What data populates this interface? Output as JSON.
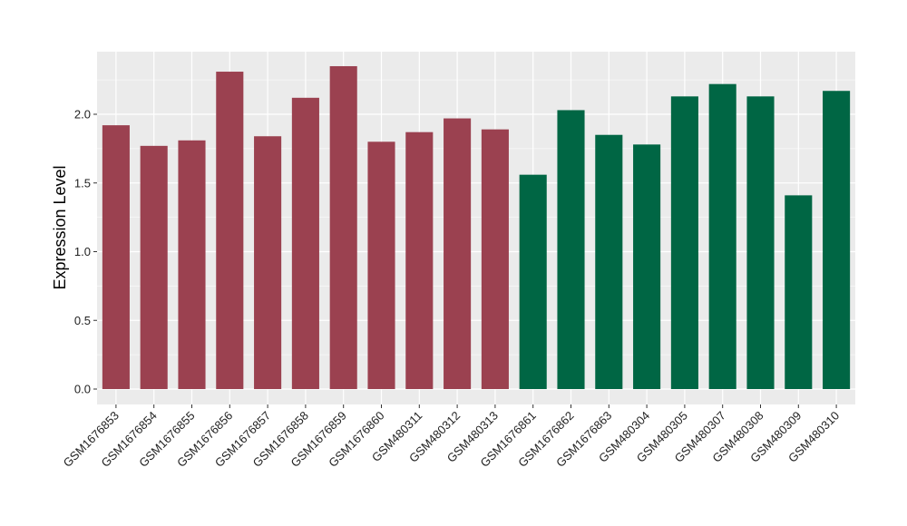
{
  "chart_data": {
    "type": "bar",
    "title": "",
    "xlabel": "",
    "ylabel": "Expression Level",
    "ylim": [
      0,
      2.47
    ],
    "yticks": [
      0.0,
      0.5,
      1.0,
      1.5,
      2.0
    ],
    "ytick_labels": [
      "0.0",
      "0.5",
      "1.0",
      "1.5",
      "2.0"
    ],
    "grid": true,
    "legend": "none",
    "categories": [
      "GSM1676853",
      "GSM1676854",
      "GSM1676855",
      "GSM1676856",
      "GSM1676857",
      "GSM1676858",
      "GSM1676859",
      "GSM1676860",
      "GSM480311",
      "GSM480312",
      "GSM480313",
      "GSM1676861",
      "GSM1676862",
      "GSM1676863",
      "GSM480304",
      "GSM480305",
      "GSM480307",
      "GSM480308",
      "GSM480309",
      "GSM480310"
    ],
    "values": [
      1.92,
      1.77,
      1.81,
      2.31,
      1.84,
      2.12,
      2.35,
      1.8,
      1.87,
      1.97,
      1.89,
      1.56,
      2.03,
      1.85,
      1.78,
      2.13,
      2.22,
      2.13,
      1.41,
      2.17
    ],
    "groups": [
      0,
      0,
      0,
      0,
      0,
      0,
      0,
      0,
      0,
      0,
      0,
      1,
      1,
      1,
      1,
      1,
      1,
      1,
      1,
      1
    ],
    "colors": {
      "group_0": "#9b4150",
      "group_1": "#006644",
      "panel_background": "#ebebeb",
      "gridline": "#ffffff"
    }
  }
}
